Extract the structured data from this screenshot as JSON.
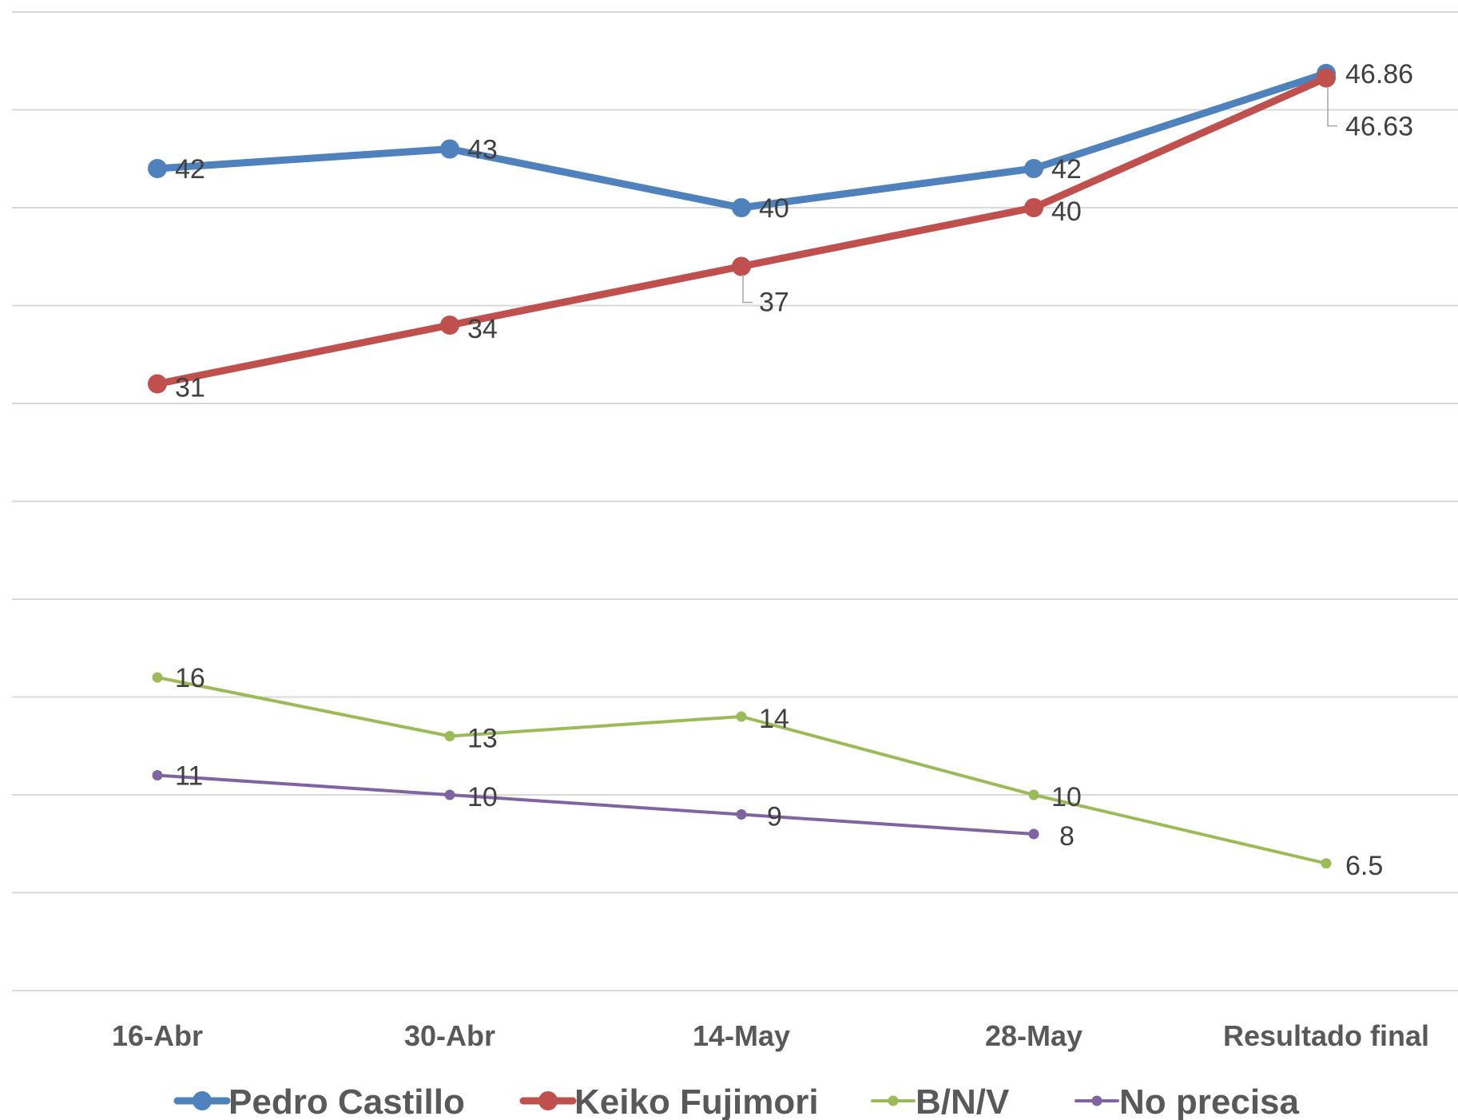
{
  "chart_data": {
    "type": "line",
    "categories": [
      "16-Abr",
      "30-Abr",
      "14-May",
      "28-May",
      "Resultado final"
    ],
    "ylim": [
      0,
      50
    ],
    "grid": true,
    "legend_position": "bottom",
    "series": [
      {
        "name": "Pedro Castillo",
        "values": [
          42,
          43,
          40,
          42,
          46.86
        ],
        "labels": [
          "42",
          "43",
          "40",
          "42",
          "46.86"
        ],
        "color": "#4f81bd",
        "weight": "thick"
      },
      {
        "name": "Keiko Fujimori",
        "values": [
          31,
          34,
          37,
          40,
          46.63
        ],
        "labels": [
          "31",
          "34",
          "37",
          "40",
          "46.63"
        ],
        "color": "#c0504d",
        "weight": "thick"
      },
      {
        "name": "B/N/V",
        "values": [
          16,
          13,
          14,
          10,
          6.5
        ],
        "labels": [
          "16",
          "13",
          "14",
          "10",
          "6.5"
        ],
        "color": "#9bbb59",
        "weight": "thin"
      },
      {
        "name": "No precisa",
        "values": [
          11,
          10,
          9,
          8,
          null
        ],
        "labels": [
          "11",
          "10",
          "9",
          "8",
          ""
        ],
        "color": "#8064a2",
        "weight": "thin"
      }
    ]
  }
}
